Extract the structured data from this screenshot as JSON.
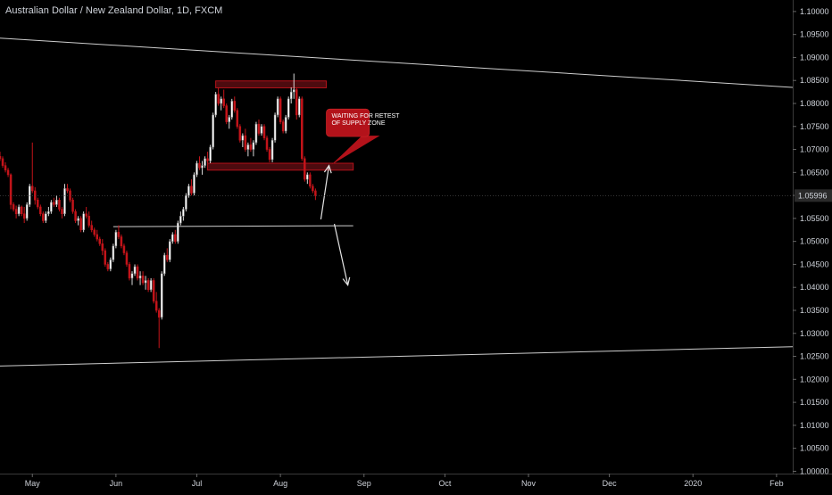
{
  "header": {
    "title": "Australian Dollar / New Zealand Dollar, 1D, FXCM"
  },
  "colors": {
    "background": "#000000",
    "up_candle": "#ffffff",
    "down_candle": "#c4141a",
    "zone_fill": "#5a0d12",
    "zone_border": "#b3121a",
    "callout": "#b3121a",
    "trendline": "#cfcfcf",
    "price_badge": "#2a2a2a"
  },
  "chart_data": {
    "type": "candlestick",
    "title": "Australian Dollar / New Zealand Dollar, 1D, FXCM",
    "symbol": "AUD/NZD",
    "timeframe": "1D",
    "y_ticks": [
      "1.10000",
      "1.09500",
      "1.09000",
      "1.08500",
      "1.08000",
      "1.07500",
      "1.07000",
      "1.06500",
      "1.06000",
      "1.05500",
      "1.05000",
      "1.04500",
      "1.04000",
      "1.03500",
      "1.03000",
      "1.02500",
      "1.02000",
      "1.01500",
      "1.01000",
      "1.00500",
      "1.00000"
    ],
    "x_ticks": [
      {
        "label": "May",
        "day": 0
      },
      {
        "label": "Jun",
        "day": 31
      },
      {
        "label": "Jul",
        "day": 61
      },
      {
        "label": "Aug",
        "day": 92
      },
      {
        "label": "Sep",
        "day": 123
      },
      {
        "label": "Oct",
        "day": 153
      },
      {
        "label": "Nov",
        "day": 184
      },
      {
        "label": "Dec",
        "day": 214
      },
      {
        "label": "2020",
        "day": 245
      },
      {
        "label": "Feb",
        "day": 276
      }
    ],
    "ylim": [
      0.9995,
      1.1025
    ],
    "xlim_days": [
      -12,
      282
    ],
    "last_price": "1.05996",
    "candles": [
      [
        -12,
        1.0685,
        1.0695,
        1.0675,
        1.068
      ],
      [
        -11,
        1.068,
        1.0685,
        1.066,
        1.0665
      ],
      [
        -10,
        1.0665,
        1.0672,
        1.065,
        1.0655
      ],
      [
        -9,
        1.0655,
        1.066,
        1.064,
        1.0645
      ],
      [
        -8,
        1.0645,
        1.0648,
        1.057,
        1.058
      ],
      [
        -7,
        1.058,
        1.0585,
        1.0565,
        1.057
      ],
      [
        -6,
        1.057,
        1.0578,
        1.055,
        1.056
      ],
      [
        -5,
        1.056,
        1.058,
        1.0555,
        1.0575
      ],
      [
        -4,
        1.0575,
        1.0578,
        1.0555,
        1.056
      ],
      [
        -3,
        1.056,
        1.0575,
        1.054,
        1.055
      ],
      [
        -2,
        1.055,
        1.0585,
        1.0545,
        1.058
      ],
      [
        -1,
        1.058,
        1.0625,
        1.0575,
        1.062
      ],
      [
        0,
        1.062,
        1.0715,
        1.0605,
        1.061
      ],
      [
        1,
        1.061,
        1.0618,
        1.058,
        1.059
      ],
      [
        2,
        1.059,
        1.0595,
        1.057,
        1.0575
      ],
      [
        3,
        1.0575,
        1.058,
        1.0555,
        1.056
      ],
      [
        4,
        1.056,
        1.0565,
        1.054,
        1.0545
      ],
      [
        5,
        1.0545,
        1.0565,
        1.054,
        1.056
      ],
      [
        6,
        1.056,
        1.0575,
        1.0555,
        1.0565
      ],
      [
        7,
        1.0565,
        1.059,
        1.056,
        1.0585
      ],
      [
        8,
        1.0585,
        1.0595,
        1.0575,
        1.058
      ],
      [
        9,
        1.058,
        1.06,
        1.0575,
        1.059
      ],
      [
        10,
        1.059,
        1.0595,
        1.0565,
        1.057
      ],
      [
        11,
        1.057,
        1.0575,
        1.055,
        1.056
      ],
      [
        12,
        1.056,
        1.0625,
        1.0555,
        1.0615
      ],
      [
        13,
        1.0615,
        1.0625,
        1.0605,
        1.061
      ],
      [
        14,
        1.061,
        1.0615,
        1.0585,
        1.059
      ],
      [
        15,
        1.059,
        1.0595,
        1.056,
        1.0565
      ],
      [
        16,
        1.0565,
        1.057,
        1.054,
        1.0545
      ],
      [
        17,
        1.0545,
        1.0555,
        1.0535,
        1.055
      ],
      [
        18,
        1.055,
        1.0555,
        1.052,
        1.0525
      ],
      [
        19,
        1.0525,
        1.0565,
        1.052,
        1.056
      ],
      [
        20,
        1.056,
        1.0575,
        1.055,
        1.0555
      ],
      [
        21,
        1.0555,
        1.0565,
        1.053,
        1.0535
      ],
      [
        22,
        1.0535,
        1.0545,
        1.052,
        1.0525
      ],
      [
        23,
        1.0525,
        1.053,
        1.051,
        1.0515
      ],
      [
        24,
        1.0515,
        1.0525,
        1.05,
        1.0505
      ],
      [
        25,
        1.0505,
        1.051,
        1.049,
        1.0495
      ],
      [
        26,
        1.0495,
        1.0505,
        1.047,
        1.048
      ],
      [
        27,
        1.048,
        1.0485,
        1.0445,
        1.045
      ],
      [
        28,
        1.045,
        1.0455,
        1.0435,
        1.044
      ],
      [
        29,
        1.044,
        1.0465,
        1.0435,
        1.046
      ],
      [
        30,
        1.046,
        1.0495,
        1.0455,
        1.049
      ],
      [
        31,
        1.049,
        1.0525,
        1.0485,
        1.052
      ],
      [
        32,
        1.052,
        1.0535,
        1.0505,
        1.051
      ],
      [
        33,
        1.051,
        1.0515,
        1.0485,
        1.049
      ],
      [
        34,
        1.049,
        1.0495,
        1.047,
        1.0475
      ],
      [
        35,
        1.0475,
        1.048,
        1.0445,
        1.045
      ],
      [
        36,
        1.045,
        1.0455,
        1.0415,
        1.042
      ],
      [
        37,
        1.042,
        1.0435,
        1.0405,
        1.043
      ],
      [
        38,
        1.043,
        1.045,
        1.0425,
        1.0445
      ],
      [
        39,
        1.0445,
        1.045,
        1.0415,
        1.042
      ],
      [
        40,
        1.042,
        1.0435,
        1.0405,
        1.0425
      ],
      [
        41,
        1.0425,
        1.0435,
        1.0405,
        1.041
      ],
      [
        42,
        1.041,
        1.0425,
        1.0395,
        1.0415
      ],
      [
        43,
        1.0415,
        1.042,
        1.039,
        1.0395
      ],
      [
        44,
        1.0395,
        1.042,
        1.039,
        1.0415
      ],
      [
        45,
        1.0415,
        1.042,
        1.0365,
        1.037
      ],
      [
        46,
        1.037,
        1.039,
        1.0345,
        1.035
      ],
      [
        47,
        1.035,
        1.0355,
        1.0268,
        1.0335
      ],
      [
        48,
        1.0335,
        1.0435,
        1.033,
        1.043
      ],
      [
        49,
        1.043,
        1.0475,
        1.0425,
        1.047
      ],
      [
        50,
        1.047,
        1.0485,
        1.0455,
        1.046
      ],
      [
        51,
        1.046,
        1.0505,
        1.0455,
        1.05
      ],
      [
        52,
        1.05,
        1.052,
        1.0495,
        1.0515
      ],
      [
        53,
        1.0515,
        1.0525,
        1.0495,
        1.05
      ],
      [
        54,
        1.05,
        1.0545,
        1.0495,
        1.054
      ],
      [
        55,
        1.054,
        1.0565,
        1.0535,
        1.0555
      ],
      [
        56,
        1.0555,
        1.0575,
        1.0545,
        1.057
      ],
      [
        57,
        1.057,
        1.0605,
        1.0565,
        1.06
      ],
      [
        58,
        1.06,
        1.0625,
        1.0595,
        1.062
      ],
      [
        59,
        1.062,
        1.0635,
        1.06,
        1.0605
      ],
      [
        60,
        1.0605,
        1.065,
        1.06,
        1.0645
      ],
      [
        61,
        1.0645,
        1.0675,
        1.064,
        1.067
      ],
      [
        62,
        1.067,
        1.0685,
        1.0655,
        1.066
      ],
      [
        63,
        1.066,
        1.0675,
        1.0645,
        1.0665
      ],
      [
        64,
        1.0665,
        1.0685,
        1.066,
        1.068
      ],
      [
        65,
        1.068,
        1.0695,
        1.067,
        1.0675
      ],
      [
        66,
        1.0675,
        1.071,
        1.067,
        1.0705
      ],
      [
        67,
        1.0705,
        1.078,
        1.07,
        1.0775
      ],
      [
        68,
        1.0775,
        1.0825,
        1.077,
        1.082
      ],
      [
        69,
        1.082,
        1.0835,
        1.0795,
        1.08
      ],
      [
        70,
        1.08,
        1.0815,
        1.0785,
        1.081
      ],
      [
        71,
        1.081,
        1.083,
        1.079,
        1.0795
      ],
      [
        72,
        1.0795,
        1.08,
        1.0755,
        1.076
      ],
      [
        73,
        1.076,
        1.0775,
        1.0745,
        1.077
      ],
      [
        74,
        1.077,
        1.081,
        1.0765,
        1.0805
      ],
      [
        75,
        1.0805,
        1.0815,
        1.078,
        1.0785
      ],
      [
        76,
        1.0785,
        1.079,
        1.0745,
        1.075
      ],
      [
        77,
        1.075,
        1.0755,
        1.0715,
        1.072
      ],
      [
        78,
        1.072,
        1.0735,
        1.0705,
        1.073
      ],
      [
        79,
        1.073,
        1.0745,
        1.0695,
        1.07
      ],
      [
        80,
        1.07,
        1.0715,
        1.0685,
        1.071
      ],
      [
        81,
        1.071,
        1.0725,
        1.0695,
        1.07
      ],
      [
        82,
        1.07,
        1.072,
        1.0685,
        1.0715
      ],
      [
        83,
        1.0715,
        1.076,
        1.071,
        1.0755
      ],
      [
        84,
        1.0755,
        1.0765,
        1.073,
        1.0735
      ],
      [
        85,
        1.0735,
        1.0755,
        1.073,
        1.075
      ],
      [
        86,
        1.075,
        1.0755,
        1.072,
        1.0725
      ],
      [
        87,
        1.0725,
        1.073,
        1.0695,
        1.07
      ],
      [
        88,
        1.07,
        1.0705,
        1.0672,
        1.0678
      ],
      [
        89,
        1.0678,
        1.0725,
        1.0672,
        1.072
      ],
      [
        90,
        1.072,
        1.078,
        1.0715,
        1.0775
      ],
      [
        91,
        1.0775,
        1.0815,
        1.077,
        1.081
      ],
      [
        92,
        1.081,
        1.0815,
        1.0755,
        1.076
      ],
      [
        93,
        1.076,
        1.0765,
        1.0735,
        1.074
      ],
      [
        94,
        1.074,
        1.0775,
        1.0735,
        1.077
      ],
      [
        95,
        1.077,
        1.0815,
        1.0765,
        1.081
      ],
      [
        96,
        1.081,
        1.0835,
        1.08,
        1.0825
      ],
      [
        97,
        1.0825,
        1.0865,
        1.081,
        1.083
      ],
      [
        98,
        1.083,
        1.0835,
        1.0765,
        1.0775
      ],
      [
        99,
        1.0775,
        1.0815,
        1.077,
        1.081
      ],
      [
        100,
        1.081,
        1.0815,
        1.0675,
        1.068
      ],
      [
        101,
        1.068,
        1.0685,
        1.063,
        1.0635
      ],
      [
        102,
        1.0635,
        1.065,
        1.0625,
        1.0645
      ],
      [
        103,
        1.0645,
        1.065,
        1.0615,
        1.062
      ],
      [
        104,
        1.062,
        1.0625,
        1.0605,
        1.061
      ],
      [
        105,
        1.061,
        1.0615,
        1.059,
        1.05996
      ]
    ],
    "zones": [
      {
        "name": "supply-zone",
        "x_start": 68,
        "x_end": 109,
        "y_low": 1.0834,
        "y_high": 1.0849
      },
      {
        "name": "retest-zone",
        "x_start": 65,
        "x_end": 119,
        "y_low": 1.0655,
        "y_high": 1.067
      }
    ],
    "lines": [
      {
        "name": "upper-trendline",
        "x1": -12,
        "y1": 1.0942,
        "x2": 282,
        "y2": 1.0835
      },
      {
        "name": "lower-trendline",
        "x1": -12,
        "y1": 1.0229,
        "x2": 282,
        "y2": 1.0271
      },
      {
        "name": "support-line",
        "x1": 30,
        "y1": 1.0532,
        "x2": 119,
        "y2": 1.0534
      }
    ],
    "arrows": [
      {
        "name": "up-arrow",
        "x1": 107,
        "y1": 1.0548,
        "x2": 110,
        "y2": 1.0665
      },
      {
        "name": "down-arrow",
        "x1": 112,
        "y1": 1.0538,
        "x2": 117,
        "y2": 1.0405
      }
    ],
    "callout": {
      "lines": [
        "WAITING FOR RETEST",
        "OF SUPPLY ZONE"
      ],
      "x_start": 109,
      "x_end": 125,
      "y_top": 1.0788,
      "y_bottom": 1.0728,
      "pointer": {
        "x": 111,
        "y": 1.0667
      }
    }
  }
}
